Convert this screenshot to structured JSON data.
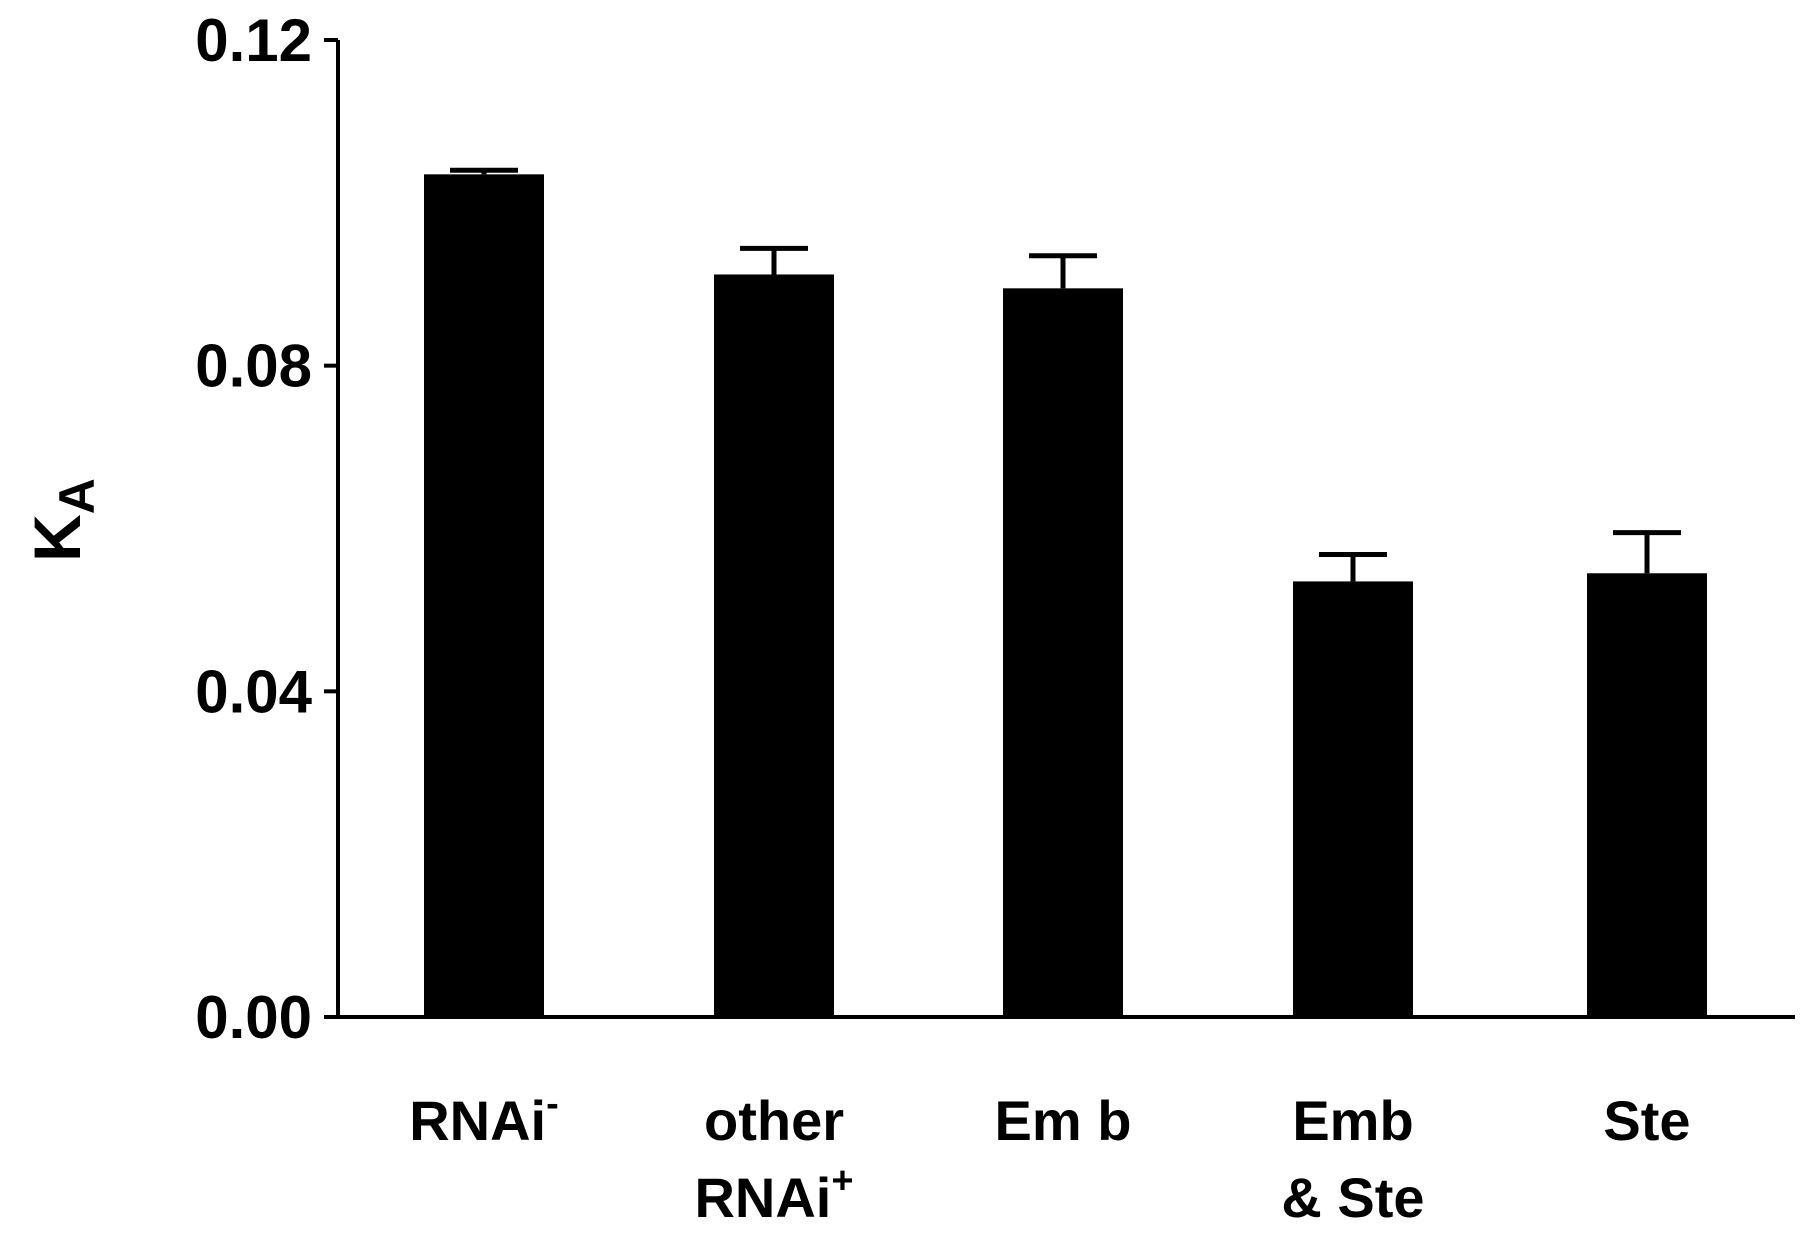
{
  "chart_data": {
    "type": "bar",
    "ylabel": "K",
    "ylabel_subscript": "A",
    "ylim": [
      0,
      0.12
    ],
    "yticks": [
      "0.00",
      "0.04",
      "0.08",
      "0.12"
    ],
    "grid": false,
    "legend": "none",
    "bar_color": "#000000",
    "categories": [
      {
        "lines": [
          {
            "text": "RNAi",
            "sup": "-"
          }
        ]
      },
      {
        "lines": [
          {
            "text": "other",
            "sup": ""
          },
          {
            "text": "RNAi",
            "sup": "+"
          }
        ]
      },
      {
        "lines": [
          {
            "text": "Em b",
            "sup": ""
          }
        ]
      },
      {
        "lines": [
          {
            "text": "Emb",
            "sup": ""
          },
          {
            "text": "& Ste",
            "sup": ""
          }
        ]
      },
      {
        "lines": [
          {
            "text": "Ste",
            "sup": ""
          }
        ]
      }
    ],
    "values": [
      0.1035,
      0.0912,
      0.0895,
      0.0535,
      0.0545
    ],
    "errors": [
      0.0005,
      0.0032,
      0.004,
      0.0033,
      0.005
    ]
  }
}
